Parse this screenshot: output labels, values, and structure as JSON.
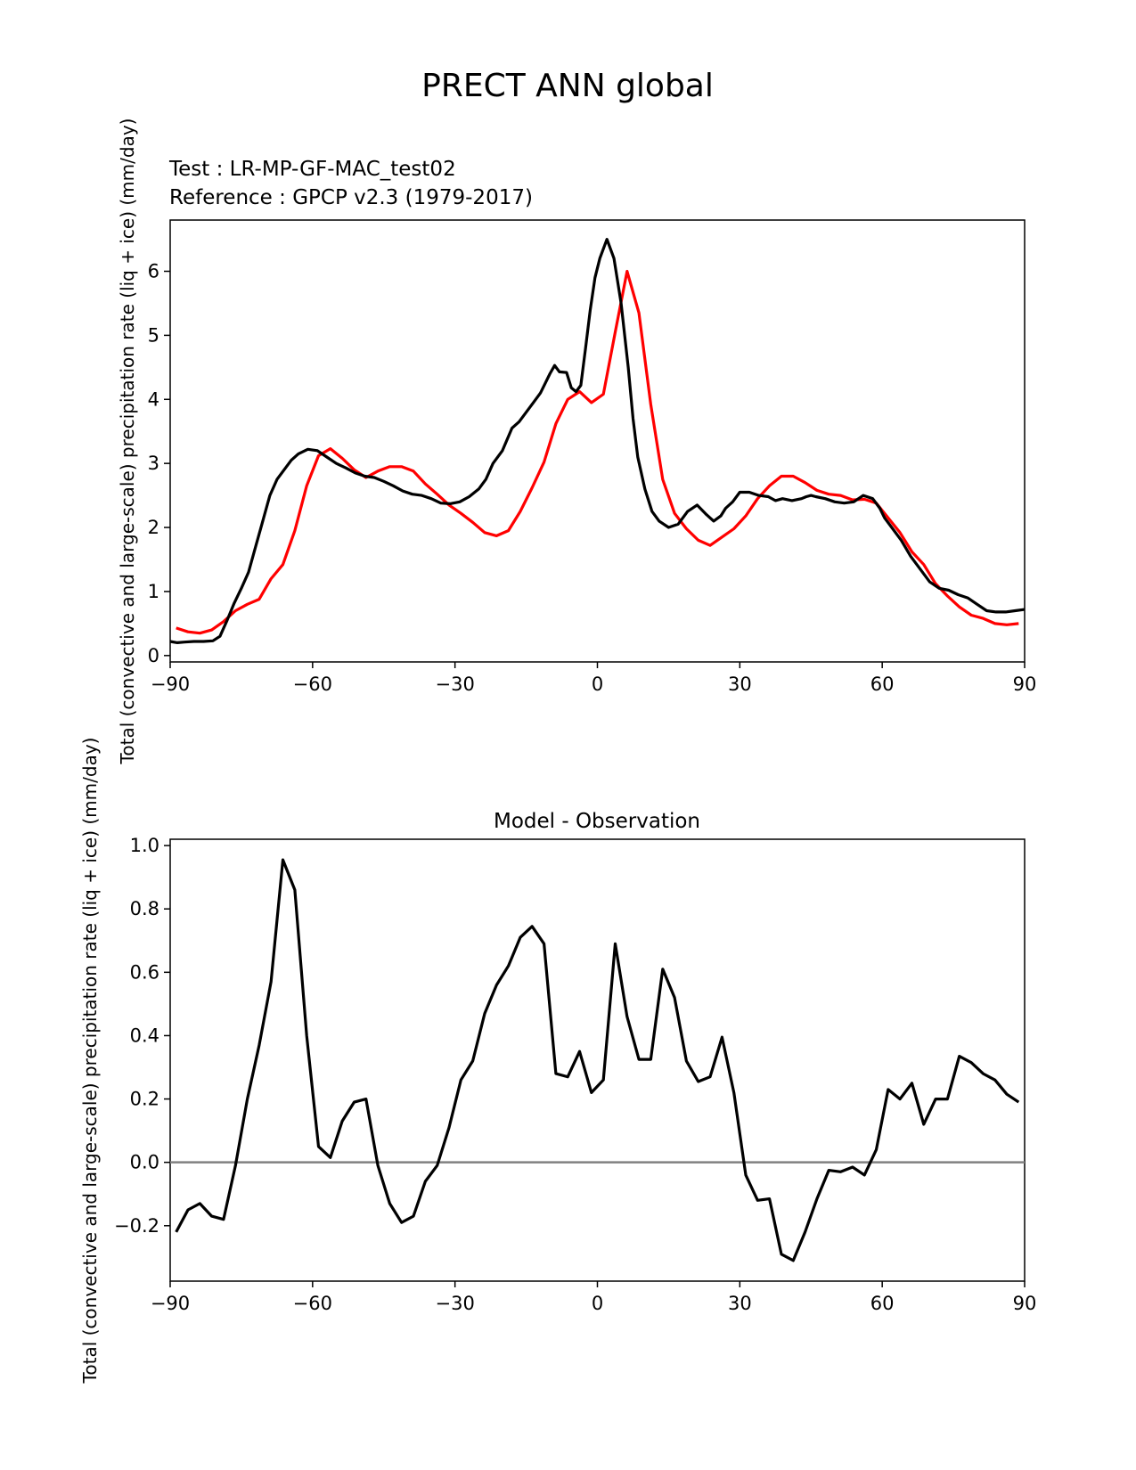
{
  "figure": {
    "title": "PRECT ANN global",
    "test_label": "Test : LR-MP-GF-MAC_test02",
    "reference_label": "Reference : GPCP v2.3 (1979-2017)",
    "test_color": "#000000",
    "reference_color": "#ff0000",
    "zero_line_color": "#808080"
  },
  "chart_data": [
    {
      "type": "line",
      "title": "",
      "xlabel": "",
      "ylabel": "Total (convective and large-scale) precipitation rate (liq + ice) (mm/day)",
      "xlim": [
        -90,
        90
      ],
      "ylim": [
        -0.1,
        6.8
      ],
      "xticks": [
        -90,
        -60,
        -30,
        0,
        30,
        60,
        90
      ],
      "xtick_labels": [
        "−90",
        "−60",
        "−30",
        "0",
        "30",
        "60",
        "90"
      ],
      "yticks": [
        0,
        1,
        2,
        3,
        4,
        5,
        6
      ],
      "ytick_labels": [
        "0",
        "1",
        "2",
        "3",
        "4",
        "5",
        "6"
      ],
      "series": [
        {
          "name": "Test : LR-MP-GF-MAC_test02",
          "color": "#000000",
          "x": [
            -90,
            -88.5,
            -87,
            -85,
            -83,
            -81,
            -79.5,
            -78,
            -76.5,
            -75,
            -73.5,
            -72,
            -70.5,
            -69,
            -67.5,
            -66,
            -64.5,
            -63,
            -61,
            -59,
            -57,
            -55,
            -53,
            -51,
            -49,
            -47,
            -45,
            -43,
            -41,
            -39,
            -37,
            -35,
            -33,
            -31,
            -29,
            -27,
            -25,
            -23.5,
            -22,
            -20,
            -18,
            -16.5,
            -15,
            -13.5,
            -12,
            -11,
            -10,
            -9,
            -8,
            -6.5,
            -5.5,
            -4.5,
            -3.5,
            -2.5,
            -1.5,
            -0.5,
            0.5,
            2,
            3.5,
            5,
            6.5,
            7.5,
            8.5,
            10,
            11.5,
            13,
            15,
            17,
            19,
            21,
            23,
            24.5,
            26,
            27,
            28.5,
            30,
            32,
            34,
            36,
            37.5,
            39,
            41,
            43,
            44,
            45,
            46,
            48,
            50,
            52,
            54,
            56,
            58,
            59.5,
            60.5,
            62,
            64,
            66,
            68,
            70,
            72,
            74,
            76,
            78,
            80,
            82,
            84,
            86,
            88,
            90
          ],
          "values": [
            0.22,
            0.2,
            0.21,
            0.22,
            0.22,
            0.23,
            0.3,
            0.55,
            0.82,
            1.05,
            1.3,
            1.7,
            2.1,
            2.5,
            2.75,
            2.9,
            3.05,
            3.15,
            3.22,
            3.2,
            3.1,
            3.0,
            2.93,
            2.85,
            2.8,
            2.78,
            2.72,
            2.65,
            2.57,
            2.52,
            2.5,
            2.45,
            2.38,
            2.37,
            2.4,
            2.48,
            2.6,
            2.75,
            3.0,
            3.2,
            3.55,
            3.65,
            3.8,
            3.95,
            4.1,
            4.25,
            4.4,
            4.53,
            4.43,
            4.42,
            4.18,
            4.12,
            4.22,
            4.8,
            5.4,
            5.9,
            6.2,
            6.5,
            6.2,
            5.5,
            4.5,
            3.7,
            3.1,
            2.6,
            2.25,
            2.1,
            2.0,
            2.05,
            2.25,
            2.35,
            2.2,
            2.1,
            2.18,
            2.3,
            2.4,
            2.55,
            2.55,
            2.5,
            2.48,
            2.42,
            2.45,
            2.42,
            2.45,
            2.48,
            2.5,
            2.48,
            2.45,
            2.4,
            2.38,
            2.4,
            2.5,
            2.45,
            2.3,
            2.15,
            2.0,
            1.8,
            1.55,
            1.35,
            1.15,
            1.05,
            1.02,
            0.95,
            0.9,
            0.8,
            0.7,
            0.68,
            0.68,
            0.7,
            0.72
          ],
          "note": "values estimated from gridlines"
        },
        {
          "name": "Reference : GPCP v2.3 (1979-2017)",
          "color": "#ff0000",
          "x": [
            -88.75,
            -86.25,
            -83.75,
            -81.25,
            -78.75,
            -76.25,
            -73.75,
            -71.25,
            -68.75,
            -66.25,
            -63.75,
            -61.25,
            -58.75,
            -56.25,
            -53.75,
            -51.25,
            -48.75,
            -46.25,
            -43.75,
            -41.25,
            -38.75,
            -36.25,
            -33.75,
            -31.25,
            -28.75,
            -26.25,
            -23.75,
            -21.25,
            -18.75,
            -16.25,
            -13.75,
            -11.25,
            -8.75,
            -6.25,
            -3.75,
            -1.25,
            1.25,
            3.75,
            6.25,
            8.75,
            11.25,
            13.75,
            16.25,
            18.75,
            21.25,
            23.75,
            26.25,
            28.75,
            31.25,
            33.75,
            36.25,
            38.75,
            41.25,
            43.75,
            46.25,
            48.75,
            51.25,
            53.75,
            56.25,
            58.75,
            61.25,
            63.75,
            66.25,
            68.75,
            71.25,
            73.75,
            76.25,
            78.75,
            81.25,
            83.75,
            86.25,
            88.75
          ],
          "values": [
            0.43,
            0.37,
            0.35,
            0.4,
            0.53,
            0.7,
            0.8,
            0.88,
            1.2,
            1.42,
            1.95,
            2.65,
            3.12,
            3.23,
            3.08,
            2.9,
            2.78,
            2.88,
            2.95,
            2.95,
            2.88,
            2.68,
            2.52,
            2.35,
            2.22,
            2.08,
            1.92,
            1.87,
            1.95,
            2.25,
            2.62,
            3.02,
            3.62,
            4.0,
            4.12,
            3.95,
            4.08,
            5.05,
            6.0,
            5.35,
            3.92,
            2.75,
            2.22,
            1.98,
            1.8,
            1.72,
            1.85,
            1.98,
            2.18,
            2.45,
            2.65,
            2.8,
            2.8,
            2.7,
            2.58,
            2.52,
            2.5,
            2.43,
            2.44,
            2.38,
            2.15,
            1.92,
            1.62,
            1.42,
            1.12,
            0.93,
            0.76,
            0.63,
            0.58,
            0.5,
            0.48,
            0.5
          ],
          "note": "values estimated from gridlines"
        }
      ]
    },
    {
      "type": "line",
      "title": "Model - Observation",
      "xlabel": "",
      "ylabel": "Total (convective and large-scale) precipitation rate (liq + ice) (mm/day)",
      "xlim": [
        -90,
        90
      ],
      "ylim": [
        -0.375,
        1.02
      ],
      "xticks": [
        -90,
        -60,
        -30,
        0,
        30,
        60,
        90
      ],
      "xtick_labels": [
        "−90",
        "−60",
        "−30",
        "0",
        "30",
        "60",
        "90"
      ],
      "yticks": [
        -0.2,
        0.0,
        0.2,
        0.4,
        0.6,
        0.8,
        1.0
      ],
      "ytick_labels": [
        "−0.2",
        "0.0",
        "0.2",
        "0.4",
        "0.6",
        "0.8",
        "1.0"
      ],
      "zero_line": 0,
      "series": [
        {
          "name": "Model - Observation",
          "color": "#000000",
          "x": [
            -88.75,
            -86.25,
            -83.75,
            -81.25,
            -78.75,
            -76.25,
            -73.75,
            -71.25,
            -68.75,
            -66.25,
            -63.75,
            -61.25,
            -58.75,
            -56.25,
            -53.75,
            -51.25,
            -48.75,
            -46.25,
            -43.75,
            -41.25,
            -38.75,
            -36.25,
            -33.75,
            -31.25,
            -28.75,
            -26.25,
            -23.75,
            -21.25,
            -18.75,
            -16.25,
            -13.75,
            -11.25,
            -8.75,
            -6.25,
            -3.75,
            -1.25,
            1.25,
            3.75,
            6.25,
            8.75,
            11.25,
            13.75,
            16.25,
            18.75,
            21.25,
            23.75,
            26.25,
            28.75,
            31.25,
            33.75,
            36.25,
            38.75,
            41.25,
            43.75,
            46.25,
            48.75,
            51.25,
            53.75,
            56.25,
            58.75,
            61.25,
            63.75,
            66.25,
            68.75,
            71.25,
            73.75,
            76.25,
            78.75,
            81.25,
            83.75,
            86.25,
            88.75
          ],
          "values": [
            -0.22,
            -0.15,
            -0.13,
            -0.17,
            -0.18,
            -0.01,
            0.2,
            0.37,
            0.57,
            0.955,
            0.86,
            0.4,
            0.05,
            0.015,
            0.13,
            0.19,
            0.2,
            -0.01,
            -0.13,
            -0.19,
            -0.17,
            -0.06,
            -0.01,
            0.11,
            0.26,
            0.32,
            0.47,
            0.56,
            0.62,
            0.71,
            0.745,
            0.69,
            0.28,
            0.27,
            0.35,
            0.22,
            0.26,
            0.69,
            0.46,
            0.325,
            0.325,
            0.61,
            0.52,
            0.32,
            0.255,
            0.27,
            0.395,
            0.22,
            -0.04,
            -0.12,
            -0.115,
            -0.29,
            -0.31,
            -0.22,
            -0.115,
            -0.025,
            -0.03,
            -0.015,
            -0.04,
            0.04,
            0.23,
            0.2,
            0.25,
            0.12,
            0.2,
            0.2,
            0.335,
            0.315,
            0.28,
            0.26,
            0.215,
            0.19
          ],
          "note": "values estimated from gridlines"
        }
      ]
    }
  ]
}
